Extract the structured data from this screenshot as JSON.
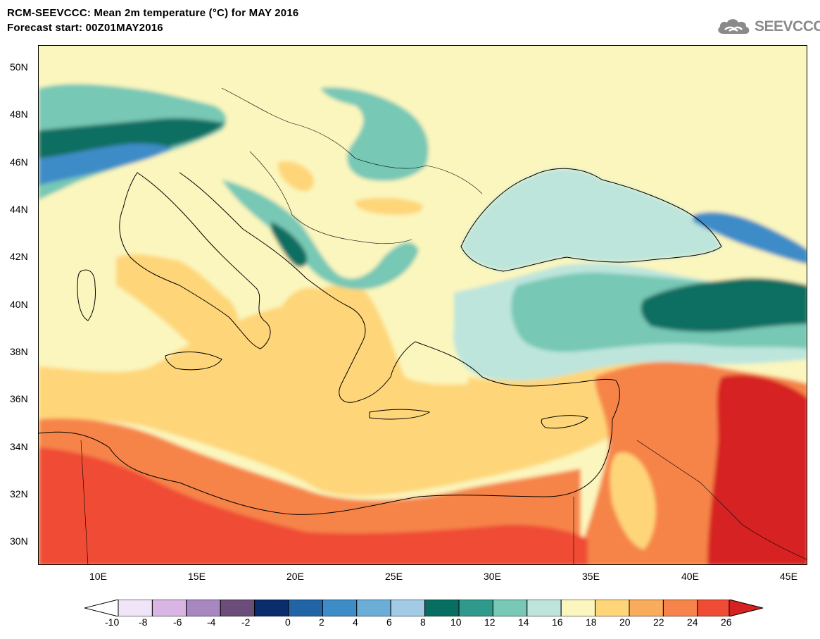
{
  "title": {
    "line1": "RCM-SEEVCCC: Mean 2m temperature (°C) for MAY 2016",
    "line2": "Forecast start: 00Z01MAY2016"
  },
  "logo": {
    "text": "SEEVCCC",
    "icon": "cloud-icon"
  },
  "axes": {
    "lat_labels": [
      "50N",
      "48N",
      "46N",
      "44N",
      "42N",
      "40N",
      "38N",
      "36N",
      "34N",
      "32N",
      "30N"
    ],
    "lon_labels": [
      "10E",
      "15E",
      "20E",
      "25E",
      "30E",
      "35E",
      "40E",
      "45E"
    ]
  },
  "colorbar": {
    "labels": [
      "-10",
      "-8",
      "-6",
      "-4",
      "-2",
      "0",
      "2",
      "4",
      "6",
      "8",
      "10",
      "12",
      "14",
      "16",
      "18",
      "20",
      "22",
      "24",
      "26"
    ],
    "colors": [
      "#ffffff",
      "#f0e4f7",
      "#d8b5e3",
      "#a887c1",
      "#6b4d7a",
      "#0c2d6b",
      "#2265a6",
      "#3e8cc7",
      "#6aaed8",
      "#a2cce6",
      "#096e62",
      "#2f9a8c",
      "#77c8b5",
      "#bde5dc",
      "#fbf6bd",
      "#fed679",
      "#f9ac5b",
      "#f6844a",
      "#ef4b35",
      "#d62121"
    ]
  },
  "palette": {
    "land": "#fbf6bd",
    "warm": "#fed679",
    "hot": "#f6844a",
    "hottest": "#d62121",
    "cool": "#bde5dc",
    "teal": "#77c8b5",
    "dark_teal": "#096e62",
    "blue": "#3e8cc7"
  }
}
